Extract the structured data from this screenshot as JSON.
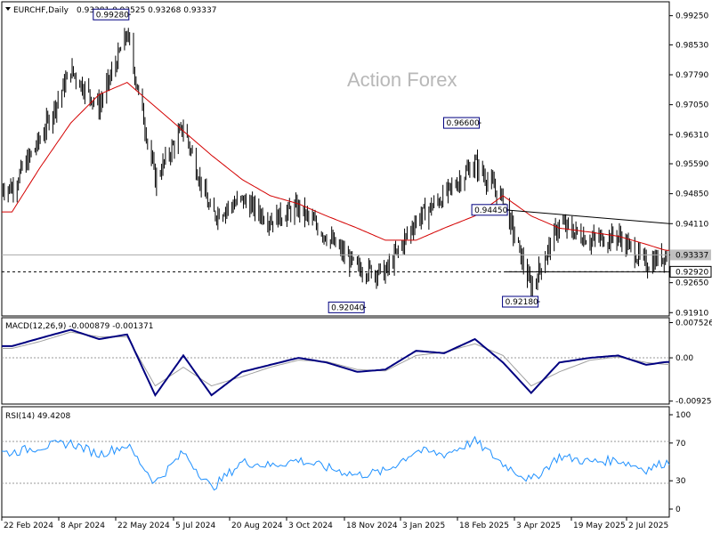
{
  "header": {
    "symbol_label": "EURCHF,Daily",
    "ohlc_text": "0.93381 0.93525 0.93268 0.93337"
  },
  "watermark": "Action Forex",
  "price_panel": {
    "ylim": [
      0.9185,
      0.9955
    ],
    "ticks": [
      "0.99250",
      "0.98530",
      "0.97790",
      "0.97050",
      "0.96310",
      "0.95590",
      "0.94850",
      "0.94110",
      "0.93337",
      "0.92920",
      "0.92650",
      "0.91910"
    ],
    "tick_values": [
      0.9925,
      0.9853,
      0.9779,
      0.9705,
      0.9631,
      0.9559,
      0.9485,
      0.9411,
      0.93337,
      0.9292,
      0.9265,
      0.9191
    ],
    "current_price": "0.93337",
    "support_level": "0.92920",
    "annotations": [
      {
        "text": "0.99280",
        "date": "2024-05-22",
        "value": 0.9928
      },
      {
        "text": "0.92040",
        "date": "2024-11-22",
        "value": 0.9204
      },
      {
        "text": "0.96600",
        "date": "2025-02-20",
        "value": 0.966
      },
      {
        "text": "0.94450",
        "date": "2025-03-14",
        "value": 0.9445
      },
      {
        "text": "0.92180",
        "date": "2025-04-07",
        "value": 0.9218
      }
    ]
  },
  "macd_panel": {
    "title": "MACD(12,26,9) -0.000879 -0.001371",
    "ticks": [
      "0.007526",
      "0.00",
      "-0.009252"
    ],
    "tick_values": [
      0.007526,
      0.0,
      -0.009252
    ]
  },
  "rsi_panel": {
    "title": "RSI(14) 49.4208",
    "ticks": [
      "100",
      "70",
      "30",
      "0"
    ],
    "tick_values": [
      100,
      70,
      30,
      0
    ]
  },
  "x_axis": {
    "labels": [
      "22 Feb 2024",
      "8 Apr 2024",
      "22 May 2024",
      "5 Jul 2024",
      "20 Aug 2024",
      "3 Oct 2024",
      "18 Nov 2024",
      "3 Jan 2025",
      "18 Feb 2025",
      "3 Apr 2025",
      "19 May 2025",
      "2 Jul 2025"
    ]
  },
  "colors": {
    "candles": "#000000",
    "ma": "#d40000",
    "macd_main": "#000080",
    "macd_signal": "#a0a0a0",
    "rsi": "#1e90ff",
    "grid": "#c8c8c8"
  },
  "chart_data": {
    "type": "line",
    "title": "EURCHF,Daily",
    "x": [
      "2024-02-22",
      "2024-03-15",
      "2024-04-08",
      "2024-04-30",
      "2024-05-22",
      "2024-06-13",
      "2024-07-05",
      "2024-07-27",
      "2024-08-20",
      "2024-09-11",
      "2024-10-03",
      "2024-10-25",
      "2024-11-18",
      "2024-12-10",
      "2025-01-03",
      "2025-01-25",
      "2025-02-18",
      "2025-03-12",
      "2025-04-03",
      "2025-04-25",
      "2025-05-19",
      "2025-06-10",
      "2025-07-02",
      "2025-07-17"
    ],
    "series": [
      {
        "values": [
          0.95,
          0.962,
          0.979,
          0.97,
          0.988,
          0.952,
          0.965,
          0.943,
          0.947,
          0.942,
          0.945,
          0.938,
          0.93,
          0.929,
          0.942,
          0.948,
          0.956,
          0.947,
          0.925,
          0.941,
          0.937,
          0.938,
          0.931,
          0.9334
        ]
      },
      {
        "values": [
          0.944,
          0.955,
          0.966,
          0.973,
          0.976,
          0.97,
          0.964,
          0.958,
          0.952,
          0.948,
          0.946,
          0.943,
          0.94,
          0.937,
          0.937,
          0.94,
          0.943,
          0.948,
          0.943,
          0.94,
          0.939,
          0.938,
          0.936,
          0.9345
        ]
      },
      {
        "values": [
          0.0025,
          0.0042,
          0.006,
          0.004,
          0.005,
          -0.008,
          0.0005,
          -0.008,
          -0.003,
          -0.0015,
          0.0,
          -0.001,
          -0.003,
          -0.0025,
          0.0015,
          0.001,
          0.004,
          -0.001,
          -0.0075,
          -0.001,
          0.0,
          0.0005,
          -0.0015,
          -0.0009
        ]
      },
      {
        "values": [
          0.002,
          0.0035,
          0.0055,
          0.0045,
          0.0045,
          -0.006,
          -0.002,
          -0.006,
          -0.004,
          -0.002,
          -0.0005,
          -0.0008,
          -0.0025,
          -0.0028,
          0.0005,
          0.0012,
          0.003,
          0.0005,
          -0.006,
          -0.003,
          -0.0005,
          0.0002,
          -0.001,
          -0.0014
        ]
      },
      {
        "values": [
          60,
          66,
          70,
          58,
          68,
          28,
          60,
          22,
          50,
          46,
          52,
          44,
          36,
          40,
          62,
          58,
          72,
          48,
          30,
          56,
          50,
          52,
          42,
          49.42
        ]
      }
    ]
  }
}
